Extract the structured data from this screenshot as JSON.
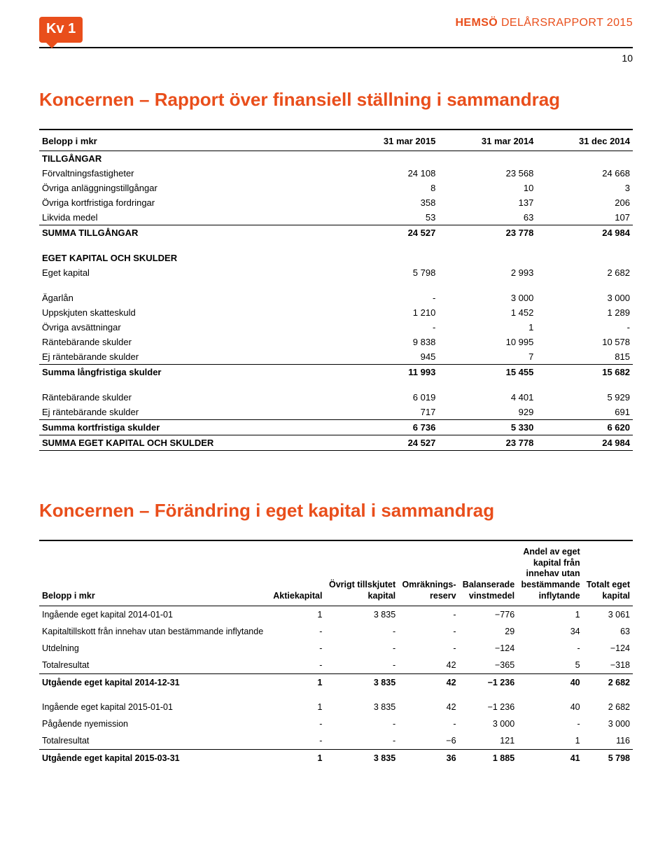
{
  "header": {
    "badge": "Kv 1",
    "brand": "HEMSÖ",
    "report": "DELÅRSRAPPORT 2015",
    "page": "10"
  },
  "title1": "Koncernen – Rapport över finansiell ställning i sammandrag",
  "title2": "Koncernen – Förändring i eget kapital i sammandrag",
  "table1": {
    "head": [
      "Belopp i mkr",
      "31 mar 2015",
      "31 mar 2014",
      "31 dec 2014"
    ],
    "rows": [
      {
        "t": "cat",
        "c": [
          "TILLGÅNGAR",
          "",
          "",
          ""
        ]
      },
      {
        "t": "",
        "c": [
          "Förvaltningsfastigheter",
          "24 108",
          "23 568",
          "24 668"
        ]
      },
      {
        "t": "",
        "c": [
          "Övriga anläggningstillgångar",
          "8",
          "10",
          "3"
        ]
      },
      {
        "t": "",
        "c": [
          "Övriga kortfristiga fordringar",
          "358",
          "137",
          "206"
        ]
      },
      {
        "t": "",
        "c": [
          "Likvida medel",
          "53",
          "63",
          "107"
        ]
      },
      {
        "t": "sum",
        "c": [
          "SUMMA TILLGÅNGAR",
          "24 527",
          "23 778",
          "24 984"
        ]
      },
      {
        "t": "spacer cat",
        "c": [
          "EGET KAPITAL OCH SKULDER",
          "",
          "",
          ""
        ]
      },
      {
        "t": "",
        "c": [
          "Eget kapital",
          "5 798",
          "2 993",
          "2 682"
        ]
      },
      {
        "t": "spacer",
        "c": [
          "Ägarlån",
          "-",
          "3 000",
          "3 000"
        ]
      },
      {
        "t": "",
        "c": [
          "Uppskjuten skatteskuld",
          "1 210",
          "1 452",
          "1 289"
        ]
      },
      {
        "t": "",
        "c": [
          "Övriga avsättningar",
          "-",
          "1",
          "-"
        ]
      },
      {
        "t": "",
        "c": [
          "Räntebärande skulder",
          "9 838",
          "10 995",
          "10 578"
        ]
      },
      {
        "t": "",
        "c": [
          "Ej räntebärande skulder",
          "945",
          "7",
          "815"
        ]
      },
      {
        "t": "sum",
        "c": [
          "Summa långfristiga skulder",
          "11 993",
          "15 455",
          "15 682"
        ]
      },
      {
        "t": "spacer",
        "c": [
          "Räntebärande skulder",
          "6 019",
          "4 401",
          "5 929"
        ]
      },
      {
        "t": "",
        "c": [
          "Ej räntebärande skulder",
          "717",
          "929",
          "691"
        ]
      },
      {
        "t": "sum",
        "c": [
          "Summa kortfristiga skulder",
          "6 736",
          "5 330",
          "6 620"
        ]
      },
      {
        "t": "grand",
        "c": [
          "SUMMA EGET KAPITAL OCH SKULDER",
          "24 527",
          "23 778",
          "24 984"
        ]
      }
    ]
  },
  "table2": {
    "head": [
      "Belopp i mkr",
      "Aktiekapital",
      "Övrigt tillskjutet\nkapital",
      "Omräknings-\nreserv",
      "Balanserade\nvinstmedel",
      "Andel av eget\nkapital från\ninnehav utan\nbestämmande\ninflytande",
      "Totalt eget\nkapital"
    ],
    "rows": [
      {
        "t": "",
        "c": [
          "Ingående eget kapital 2014-01-01",
          "1",
          "3 835",
          "-",
          "−776",
          "1",
          "3 061"
        ]
      },
      {
        "t": "",
        "c": [
          "Kapitaltillskott från innehav utan bestämmande inflytande",
          "-",
          "-",
          "-",
          "29",
          "34",
          "63"
        ]
      },
      {
        "t": "",
        "c": [
          "Utdelning",
          "-",
          "-",
          "-",
          "−124",
          "-",
          "−124"
        ]
      },
      {
        "t": "hr",
        "c": [
          "Totalresultat",
          "-",
          "-",
          "42",
          "−365",
          "5",
          "−318"
        ]
      },
      {
        "t": "bold",
        "c": [
          "Utgående eget kapital 2014-12-31",
          "1",
          "3 835",
          "42",
          "−1 236",
          "40",
          "2 682"
        ]
      },
      {
        "t": "sp",
        "c": [
          "Ingående eget kapital 2015-01-01",
          "1",
          "3 835",
          "42",
          "−1 236",
          "40",
          "2 682"
        ]
      },
      {
        "t": "",
        "c": [
          "Pågående nyemission",
          "-",
          "-",
          "-",
          "3 000",
          "-",
          "3 000"
        ]
      },
      {
        "t": "hr",
        "c": [
          "Totalresultat",
          "-",
          "-",
          "−6",
          "121",
          "1",
          "116"
        ]
      },
      {
        "t": "bold",
        "c": [
          "Utgående eget kapital 2015-03-31",
          "1",
          "3 835",
          "36",
          "1 885",
          "41",
          "5 798"
        ]
      }
    ]
  }
}
